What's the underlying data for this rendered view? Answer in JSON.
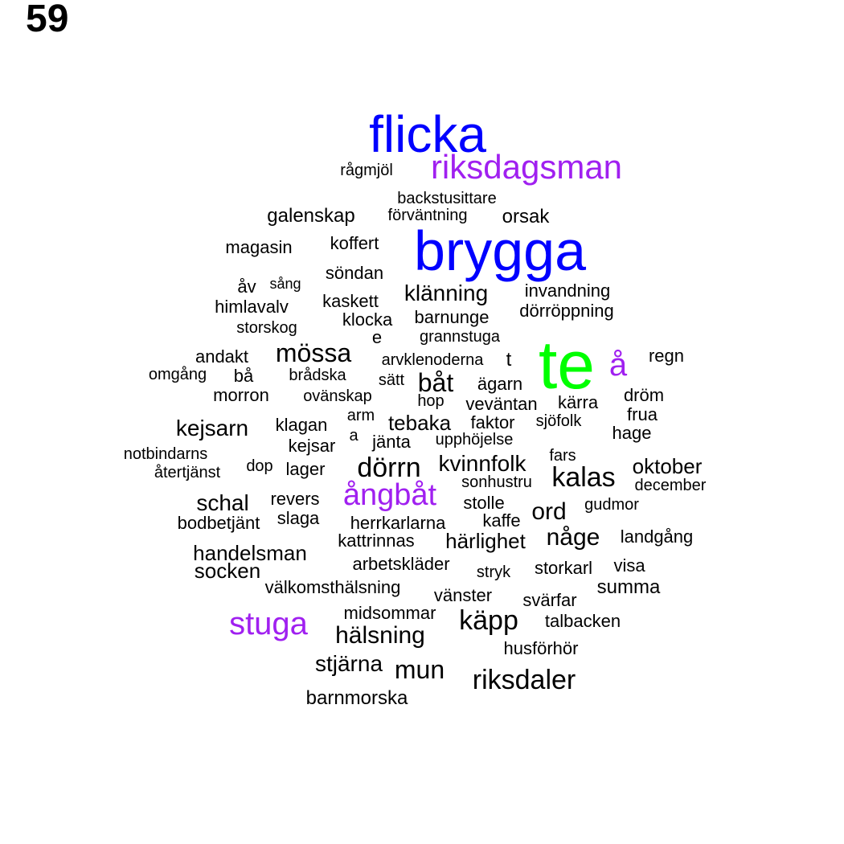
{
  "panel_number": "59",
  "palette": {
    "black": "#000000",
    "blue": "#0000ff",
    "purple": "#a020f0",
    "green": "#00ff00"
  },
  "words": [
    {
      "text": "flicka",
      "color": "blue"
    },
    {
      "text": "riksdagsman",
      "color": "purple"
    },
    {
      "text": "rågmjöl",
      "color": "black"
    },
    {
      "text": "backstusittare",
      "color": "black"
    },
    {
      "text": "galenskap",
      "color": "black"
    },
    {
      "text": "förväntning",
      "color": "black"
    },
    {
      "text": "orsak",
      "color": "black"
    },
    {
      "text": "brygga",
      "color": "blue"
    },
    {
      "text": "magasin",
      "color": "black"
    },
    {
      "text": "koffert",
      "color": "black"
    },
    {
      "text": "söndan",
      "color": "black"
    },
    {
      "text": "åv",
      "color": "black"
    },
    {
      "text": "sång",
      "color": "black"
    },
    {
      "text": "klänning",
      "color": "black"
    },
    {
      "text": "invandning",
      "color": "black"
    },
    {
      "text": "himlavalv",
      "color": "black"
    },
    {
      "text": "kaskett",
      "color": "black"
    },
    {
      "text": "barnunge",
      "color": "black"
    },
    {
      "text": "dörröppning",
      "color": "black"
    },
    {
      "text": "klocka",
      "color": "black"
    },
    {
      "text": "storskog",
      "color": "black"
    },
    {
      "text": "e",
      "color": "black"
    },
    {
      "text": "grannstuga",
      "color": "black"
    },
    {
      "text": "te",
      "color": "green"
    },
    {
      "text": "å",
      "color": "purple"
    },
    {
      "text": "regn",
      "color": "black"
    },
    {
      "text": "andakt",
      "color": "black"
    },
    {
      "text": "mössa",
      "color": "black"
    },
    {
      "text": "arvklenoderna",
      "color": "black"
    },
    {
      "text": "t",
      "color": "black"
    },
    {
      "text": "omgång",
      "color": "black"
    },
    {
      "text": "bå",
      "color": "black"
    },
    {
      "text": "brådska",
      "color": "black"
    },
    {
      "text": "sätt",
      "color": "black"
    },
    {
      "text": "båt",
      "color": "black"
    },
    {
      "text": "ägarn",
      "color": "black"
    },
    {
      "text": "morron",
      "color": "black"
    },
    {
      "text": "ovänskap",
      "color": "black"
    },
    {
      "text": "hop",
      "color": "black"
    },
    {
      "text": "veväntan",
      "color": "black"
    },
    {
      "text": "kärra",
      "color": "black"
    },
    {
      "text": "dröm",
      "color": "black"
    },
    {
      "text": "frua",
      "color": "black"
    },
    {
      "text": "kejsarn",
      "color": "black"
    },
    {
      "text": "klagan",
      "color": "black"
    },
    {
      "text": "arm",
      "color": "black"
    },
    {
      "text": "tebaka",
      "color": "black"
    },
    {
      "text": "faktor",
      "color": "black"
    },
    {
      "text": "sjöfolk",
      "color": "black"
    },
    {
      "text": "hage",
      "color": "black"
    },
    {
      "text": "a",
      "color": "black"
    },
    {
      "text": "kejsar",
      "color": "black"
    },
    {
      "text": "jänta",
      "color": "black"
    },
    {
      "text": "upphöjelse",
      "color": "black"
    },
    {
      "text": "notbindarns",
      "color": "black"
    },
    {
      "text": "fars",
      "color": "black"
    },
    {
      "text": "återtjänst",
      "color": "black"
    },
    {
      "text": "dop",
      "color": "black"
    },
    {
      "text": "lager",
      "color": "black"
    },
    {
      "text": "dörrn",
      "color": "black"
    },
    {
      "text": "kvinnfolk",
      "color": "black"
    },
    {
      "text": "oktober",
      "color": "black"
    },
    {
      "text": "kalas",
      "color": "black"
    },
    {
      "text": "sonhustru",
      "color": "black"
    },
    {
      "text": "december",
      "color": "black"
    },
    {
      "text": "schal",
      "color": "black"
    },
    {
      "text": "revers",
      "color": "black"
    },
    {
      "text": "ångbåt",
      "color": "purple"
    },
    {
      "text": "stolle",
      "color": "black"
    },
    {
      "text": "gudmor",
      "color": "black"
    },
    {
      "text": "ord",
      "color": "black"
    },
    {
      "text": "bodbetjänt",
      "color": "black"
    },
    {
      "text": "slaga",
      "color": "black"
    },
    {
      "text": "herrkarlarna",
      "color": "black"
    },
    {
      "text": "kaffe",
      "color": "black"
    },
    {
      "text": "kattrinnas",
      "color": "black"
    },
    {
      "text": "härlighet",
      "color": "black"
    },
    {
      "text": "någe",
      "color": "black"
    },
    {
      "text": "landgång",
      "color": "black"
    },
    {
      "text": "handelsman",
      "color": "black"
    },
    {
      "text": "arbetskläder",
      "color": "black"
    },
    {
      "text": "socken",
      "color": "black"
    },
    {
      "text": "stryk",
      "color": "black"
    },
    {
      "text": "storkarl",
      "color": "black"
    },
    {
      "text": "visa",
      "color": "black"
    },
    {
      "text": "välkomsthälsning",
      "color": "black"
    },
    {
      "text": "summa",
      "color": "black"
    },
    {
      "text": "vänster",
      "color": "black"
    },
    {
      "text": "svärfar",
      "color": "black"
    },
    {
      "text": "midsommar",
      "color": "black"
    },
    {
      "text": "stuga",
      "color": "purple"
    },
    {
      "text": "käpp",
      "color": "black"
    },
    {
      "text": "talbacken",
      "color": "black"
    },
    {
      "text": "hälsning",
      "color": "black"
    },
    {
      "text": "husförhör",
      "color": "black"
    },
    {
      "text": "stjärna",
      "color": "black"
    },
    {
      "text": "mun",
      "color": "black"
    },
    {
      "text": "riksdaler",
      "color": "black"
    },
    {
      "text": "barnmorska",
      "color": "black"
    }
  ]
}
